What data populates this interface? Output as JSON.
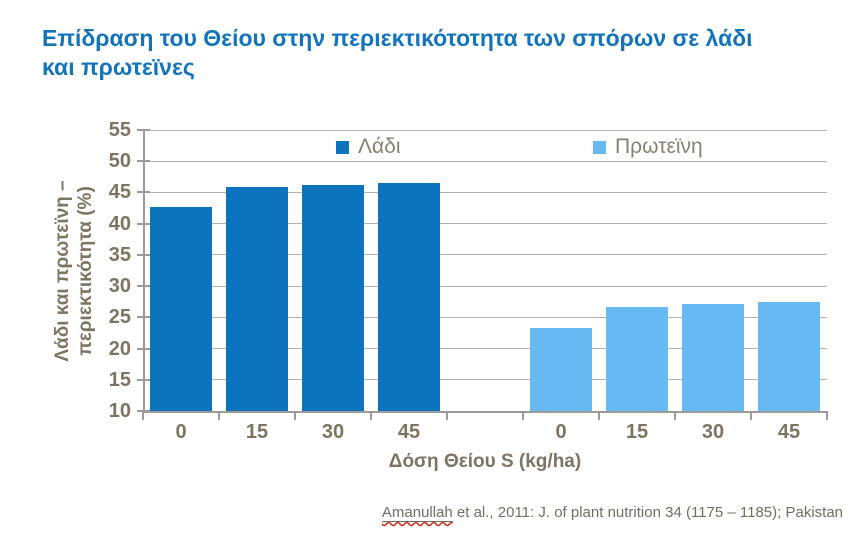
{
  "title_lines": [
    "Επίδραση του Θείου στην περιεκτικότοτητα των σπόρων σε λάδι",
    "και πρωτεϊνες"
  ],
  "chart_data": {
    "type": "bar",
    "title": "Επίδραση του Θείου στην περιεκτικότοτητα των σπόρων σε λάδι και πρωτεϊνες",
    "categories": [
      "0",
      "15",
      "30",
      "45"
    ],
    "series": [
      {
        "name": "Λάδι",
        "color": "#0d73bc",
        "values": [
          42.7,
          45.8,
          46.2,
          46.5
        ]
      },
      {
        "name": "Πρωτεϊνη",
        "color": "#66b9f1",
        "values": [
          23.3,
          26.7,
          27.2,
          27.4
        ]
      }
    ],
    "xlabel": "Δόση Θείου S (kg/ha)",
    "ylabel": "Λάδι και πρωτεϊνη – περιεκτικότητα (%)",
    "ylabel_lines": [
      "Λάδι και πρωτεϊνη –",
      "περιεκτικότητα (%)"
    ],
    "ylim": [
      10,
      55
    ],
    "ytick_step": 5,
    "grid": true,
    "legend_position": "top-inside"
  },
  "colors": {
    "title_text": "#1373bb",
    "axis_text": "#7d7461",
    "gridline": "#b2b2b2",
    "axis_line": "#9b9b9b",
    "spellcheck_wavy": "#cc2a1d"
  },
  "citation": {
    "author": "Amanullah",
    "rest": " et al., 2011: J. of plant nutrition 34 (1175 – 1185); Pakistan"
  }
}
